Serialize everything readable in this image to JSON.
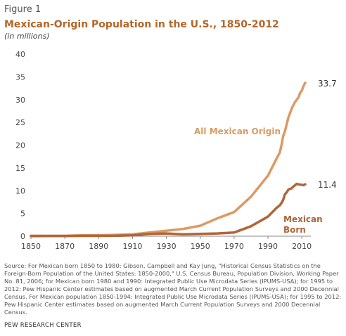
{
  "figure_label": "Figure 1",
  "source_note": "Source: For Mexican born 1850 to 1980: Gibson, Campbell and Kay Jung, \"Historical Census Statistics on the Foreign-Born Population of the United States: 1850-2000,\" U.S. Census Bureau, Population Division, Working Paper No. 81, 2006; for Mexican born 1980 and 1990: Integrated Public Use Microdata Series (IPUMS-USA); for 1995 to 2012: Pew Hispanic Center estimates based on augmented March Current Population Surveys and 2000 Decennial Census. For Mexican population 1850-1994: Integrated Public Use Microdata Series (IPUMS-USA); for 1995 to 2012: Pew Hispanic Center estimates based on augmented March Current Population Surveys and 2000 Decennial Census.",
  "footer": "PEW RESEARCH CENTER",
  "chart_data": {
    "type": "line",
    "title": "Mexican-Origin Population in the U.S., 1850-2012",
    "subtitle": "(in millions)",
    "xlim": [
      1850,
      2012
    ],
    "ylim": [
      0,
      40
    ],
    "x_ticks": [
      1850,
      1870,
      1890,
      1910,
      1930,
      1950,
      1970,
      1990,
      2010
    ],
    "y_ticks": [
      0,
      5,
      10,
      15,
      20,
      25,
      30,
      35,
      40
    ],
    "grid": false,
    "series": [
      {
        "name": "All Mexican Origin",
        "color": "#dc9a64",
        "end_label": "33.7",
        "x": [
          1850,
          1860,
          1870,
          1880,
          1890,
          1900,
          1910,
          1920,
          1930,
          1940,
          1950,
          1960,
          1970,
          1980,
          1990,
          1995,
          1997,
          1998,
          1999,
          2000,
          2001,
          2002,
          2003,
          2004,
          2005,
          2006,
          2007,
          2008,
          2009,
          2010,
          2011,
          2012
        ],
        "values": [
          0.1,
          0.1,
          0.1,
          0.2,
          0.2,
          0.3,
          0.4,
          0.8,
          1.2,
          1.6,
          2.3,
          3.9,
          5.3,
          8.7,
          13.3,
          17.0,
          18.4,
          20.0,
          22.0,
          23.0,
          24.5,
          26.0,
          27.0,
          28.0,
          28.8,
          29.5,
          30.0,
          30.5,
          31.5,
          32.0,
          33.0,
          33.7
        ]
      },
      {
        "name": "Mexican Born",
        "color": "#b0653a",
        "end_label": "11.4",
        "x": [
          1850,
          1860,
          1870,
          1880,
          1890,
          1900,
          1910,
          1920,
          1930,
          1940,
          1950,
          1960,
          1970,
          1980,
          1990,
          1995,
          1997,
          1998,
          1999,
          2000,
          2001,
          2002,
          2003,
          2004,
          2005,
          2006,
          2007,
          2008,
          2009,
          2010,
          2011,
          2012
        ],
        "values": [
          0.01,
          0.03,
          0.04,
          0.07,
          0.08,
          0.1,
          0.2,
          0.5,
          0.6,
          0.4,
          0.5,
          0.6,
          0.8,
          2.2,
          4.3,
          6.2,
          6.8,
          7.3,
          8.0,
          9.2,
          9.6,
          10.2,
          10.4,
          10.5,
          10.9,
          11.2,
          11.5,
          11.4,
          11.3,
          11.3,
          11.2,
          11.4
        ]
      }
    ]
  }
}
